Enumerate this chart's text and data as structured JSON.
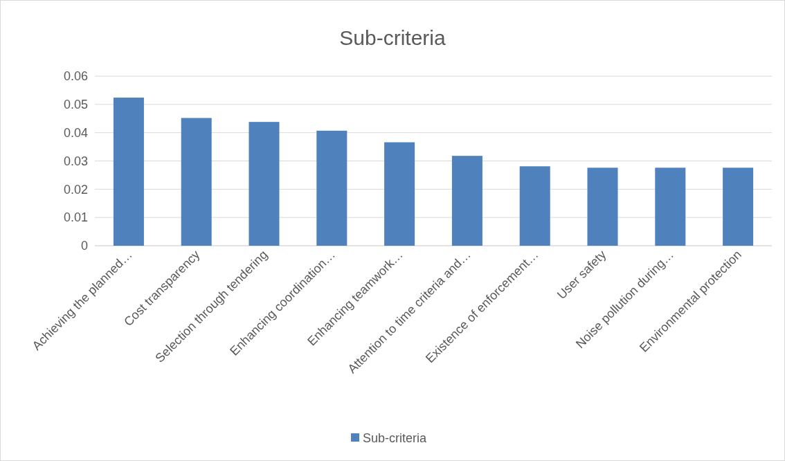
{
  "chart_data": {
    "type": "bar",
    "title": "Sub-criteria",
    "categories": [
      "Achieving the planned…",
      "Cost transparency",
      "Selection through tendering",
      "Enhancing coordination…",
      "Enhancing teamwork…",
      "Attention to time criteria and…",
      "Existence of enforcement…",
      "User safety",
      "Noise pollution during…",
      "Environmental protection"
    ],
    "series": [
      {
        "name": "Sub-criteria",
        "color": "#4f81bd",
        "values": [
          0.0524,
          0.0452,
          0.0438,
          0.0407,
          0.0366,
          0.0318,
          0.0281,
          0.0276,
          0.0276,
          0.0276
        ]
      }
    ],
    "ylim": [
      0,
      0.06
    ],
    "yticks": [
      0,
      0.01,
      0.02,
      0.03,
      0.04,
      0.05,
      0.06
    ],
    "grid": "y",
    "legend": "bottom"
  }
}
